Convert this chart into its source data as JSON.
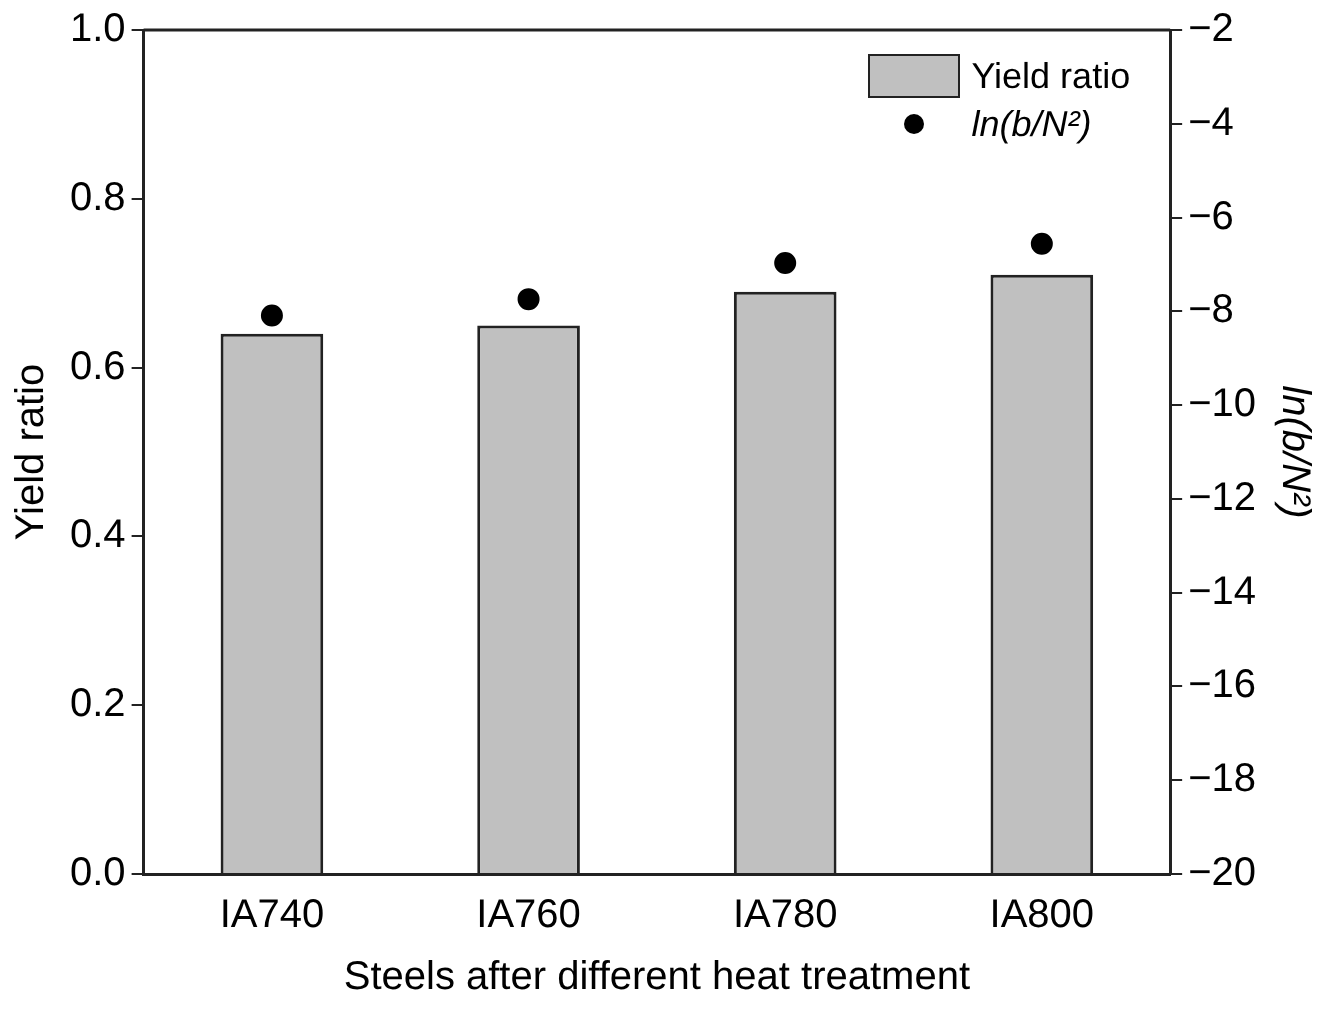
{
  "chart_data": {
    "type": "bar",
    "xlabel": "Steels after different heat treatment",
    "ylabel": "Yield ratio",
    "y2label": "ln(b/N²)",
    "categories": [
      "IA740",
      "IA760",
      "IA780",
      "IA800"
    ],
    "series": [
      {
        "name": "Yield ratio",
        "color": "#c0c0c0",
        "values": [
          0.64,
          0.65,
          0.69,
          0.71
        ]
      },
      {
        "name": "ln(b/N²)",
        "type": "scatter",
        "axis": "y2",
        "color": "#000000",
        "marker": "circle",
        "values": [
          -8.09,
          -7.74,
          -6.97,
          -6.56
        ]
      }
    ],
    "ylim": [
      0,
      1
    ],
    "yticks": [
      {
        "value": 0,
        "label": "0.0"
      },
      {
        "value": 0.2,
        "label": "0.2"
      },
      {
        "value": 0.4,
        "label": "0.4"
      },
      {
        "value": 0.6,
        "label": "0.6"
      },
      {
        "value": 0.8,
        "label": "0.8"
      },
      {
        "value": 1,
        "label": "1.0"
      }
    ],
    "y2lim": [
      -20,
      -2
    ],
    "y2ticks": [
      -20,
      -18,
      -16,
      -14,
      -12,
      -10,
      -8,
      -6,
      -4,
      -2
    ],
    "grid": false,
    "legend": "top right"
  }
}
